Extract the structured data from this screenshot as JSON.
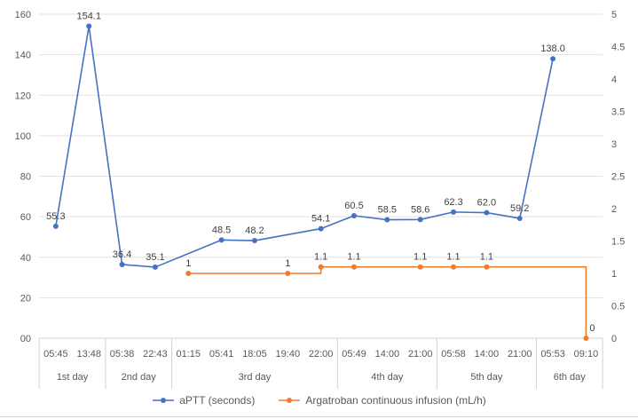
{
  "chart_data": {
    "type": "line",
    "title": "",
    "grid": "horizontal-on",
    "legend_position": "bottom",
    "x_axis": {
      "times": [
        "05:45",
        "13:48",
        "05:38",
        "22:43",
        "01:15",
        "05:41",
        "18:05",
        "19:40",
        "22:00",
        "05:49",
        "14:00",
        "21:00",
        "05:58",
        "14:00",
        "21:00",
        "05:53",
        "09:10"
      ],
      "day_groups": [
        {
          "label": "1st day",
          "span": 2
        },
        {
          "label": "2nd day",
          "span": 2
        },
        {
          "label": "3rd day",
          "span": 5
        },
        {
          "label": "4th day",
          "span": 3
        },
        {
          "label": "5th day",
          "span": 3
        },
        {
          "label": "6th day",
          "span": 2
        }
      ]
    },
    "left_axis": {
      "min": 0,
      "max": 160,
      "ticks": [
        "160",
        "140",
        "120",
        "100",
        "80",
        "60",
        "40",
        "20",
        "00"
      ]
    },
    "right_axis": {
      "min": 0,
      "max": 5,
      "ticks": [
        "5",
        "4.5",
        "4",
        "3.5",
        "3",
        "2.5",
        "2",
        "1.5",
        "1",
        "0.5",
        "0"
      ]
    },
    "series": [
      {
        "name": "aPTT (seconds)",
        "color": "#4472C4",
        "axis": "left",
        "interpolation": "linear",
        "points": [
          {
            "slot": 1,
            "value": 55.3,
            "label": "55.3"
          },
          {
            "slot": 2,
            "value": 154.1,
            "label": "154.1"
          },
          {
            "slot": 3,
            "value": 36.4,
            "label": "36.4"
          },
          {
            "slot": 4,
            "value": 35.1,
            "label": "35.1"
          },
          {
            "slot": 6,
            "value": 48.5,
            "label": "48.5"
          },
          {
            "slot": 7,
            "value": 48.2,
            "label": "48.2"
          },
          {
            "slot": 9,
            "value": 54.1,
            "label": "54.1"
          },
          {
            "slot": 10,
            "value": 60.5,
            "label": "60.5"
          },
          {
            "slot": 11,
            "value": 58.5,
            "label": "58.5"
          },
          {
            "slot": 12,
            "value": 58.6,
            "label": "58.6"
          },
          {
            "slot": 13,
            "value": 62.3,
            "label": "62.3"
          },
          {
            "slot": 14,
            "value": 62.0,
            "label": "62.0"
          },
          {
            "slot": 15,
            "value": 59.2,
            "label": "59.2"
          },
          {
            "slot": 16,
            "value": 138.0,
            "label": "138.0"
          }
        ]
      },
      {
        "name": "Argatroban continuous infusion (mL/h)",
        "color": "#ED7D31",
        "axis": "right",
        "interpolation": "step-after",
        "points": [
          {
            "slot": 5,
            "value": 1,
            "label": "1"
          },
          {
            "slot": 8,
            "value": 1,
            "label": "1"
          },
          {
            "slot": 9,
            "value": 1.1,
            "label": "1.1"
          },
          {
            "slot": 10,
            "value": 1.1,
            "label": "1.1"
          },
          {
            "slot": 12,
            "value": 1.1,
            "label": "1.1"
          },
          {
            "slot": 13,
            "value": 1.1,
            "label": "1.1"
          },
          {
            "slot": 14,
            "value": 1.1,
            "label": "1.1"
          },
          {
            "slot": 17,
            "value": 0,
            "label": "0",
            "label_side": "right"
          }
        ]
      }
    ],
    "colors": {
      "gridline": "#e2e2e2",
      "axis_line": "#d2d2d2",
      "tick_text": "#595959",
      "data_label_text": "#404040"
    }
  }
}
